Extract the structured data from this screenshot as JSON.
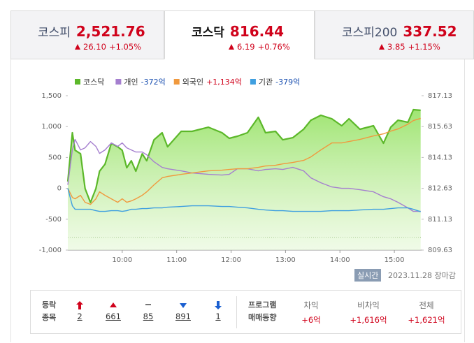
{
  "tabs": [
    {
      "name": "코스피",
      "value": "2,521.76",
      "change": "26.10",
      "rate": "+1.05%",
      "active": false
    },
    {
      "name": "코스닥",
      "value": "816.44",
      "change": "6.19",
      "rate": "+0.76%",
      "active": true
    },
    {
      "name": "코스피200",
      "value": "337.52",
      "change": "3.85",
      "rate": "+1.15%",
      "active": false
    }
  ],
  "chart_data": {
    "type": "line",
    "x": [
      540,
      545,
      548,
      554,
      559,
      565,
      571,
      575,
      581,
      588,
      595,
      600,
      605,
      610,
      615,
      622,
      627,
      635,
      644,
      650,
      665,
      677,
      695,
      710,
      718,
      727,
      738,
      750,
      758,
      769,
      777,
      788,
      800,
      808,
      819,
      831,
      842,
      850,
      862,
      877,
      888,
      896,
      904,
      915,
      921,
      929
    ],
    "xlim": [
      540,
      930
    ],
    "xticks": [
      {
        "value": 600,
        "label": "10:00"
      },
      {
        "value": 660,
        "label": "11:00"
      },
      {
        "value": 720,
        "label": "12:00"
      },
      {
        "value": 780,
        "label": "13:00"
      },
      {
        "value": 840,
        "label": "14:00"
      },
      {
        "value": 900,
        "label": "15:00"
      }
    ],
    "ylim": [
      -1000,
      1500
    ],
    "yticks": [
      {
        "value": -1000,
        "label": "-1,000"
      },
      -500,
      0,
      500,
      {
        "value": 1000,
        "label": "1,000"
      },
      {
        "value": 1500,
        "label": "1,500"
      }
    ],
    "y2lim": [
      809.63,
      817.13
    ],
    "y2ticks": [
      809.63,
      811.13,
      812.63,
      814.13,
      815.63,
      817.13
    ],
    "reference_line": 810.25,
    "series": [
      {
        "name": "코스닥",
        "color": "#5cb82a",
        "axis": "y2",
        "fill": true,
        "values": [
          812.96,
          815.33,
          814.48,
          814.31,
          812.62,
          811.94,
          812.62,
          813.46,
          813.8,
          814.82,
          814.65,
          814.48,
          813.63,
          813.97,
          813.46,
          814.31,
          813.97,
          814.99,
          815.33,
          814.65,
          815.4,
          815.4,
          815.6,
          815.33,
          815.06,
          815.16,
          815.33,
          816.08,
          815.33,
          815.4,
          814.99,
          815.09,
          815.5,
          815.94,
          816.18,
          816.01,
          815.67,
          816.01,
          815.5,
          815.67,
          814.82,
          815.6,
          815.94,
          815.84,
          816.45,
          816.42
        ]
      },
      {
        "name": "개인",
        "total": "-372억",
        "color": "#a57fcf",
        "values": [
          57,
          622,
          792,
          622,
          656,
          758,
          679,
          566,
          622,
          735,
          679,
          735,
          656,
          622,
          588,
          588,
          543,
          430,
          339,
          317,
          283,
          249,
          226,
          215,
          226,
          317,
          317,
          283,
          305,
          317,
          305,
          339,
          283,
          170,
          91,
          23,
          0,
          0,
          -23,
          -57,
          -136,
          -170,
          -226,
          -317,
          -373,
          -372
        ]
      },
      {
        "name": "외국인",
        "total": "+1,134억",
        "color": "#f0993e",
        "values": [
          0,
          -147,
          -170,
          -113,
          -226,
          -260,
          -170,
          -57,
          -113,
          -170,
          -226,
          -170,
          -226,
          -204,
          -170,
          -113,
          -57,
          57,
          170,
          192,
          226,
          249,
          283,
          294,
          305,
          317,
          317,
          339,
          362,
          373,
          396,
          419,
          453,
          509,
          622,
          735,
          735,
          758,
          792,
          848,
          882,
          927,
          961,
          1040,
          1097,
          1134
        ]
      },
      {
        "name": "기관",
        "total": "-379억",
        "color": "#3f9fe0",
        "values": [
          0,
          -283,
          -339,
          -339,
          -339,
          -339,
          -362,
          -373,
          -373,
          -362,
          -362,
          -373,
          -362,
          -339,
          -339,
          -328,
          -328,
          -317,
          -317,
          -305,
          -294,
          -283,
          -283,
          -294,
          -294,
          -305,
          -317,
          -339,
          -351,
          -362,
          -362,
          -373,
          -373,
          -373,
          -373,
          -362,
          -362,
          -362,
          -351,
          -339,
          -339,
          -328,
          -317,
          -317,
          -339,
          -379
        ]
      }
    ]
  },
  "status": {
    "badge": "실시간",
    "date": "2023.11.28",
    "state": "장마감"
  },
  "breadth": {
    "label": [
      "등락",
      "종목"
    ],
    "counts": [
      2,
      661,
      85,
      891,
      1
    ]
  },
  "program": {
    "label": [
      "프로그램",
      "매매동향"
    ],
    "columns": [
      {
        "name": "차익",
        "value": "+6억"
      },
      {
        "name": "비차익",
        "value": "+1,616억"
      },
      {
        "name": "전체",
        "value": "+1,621억"
      }
    ]
  }
}
